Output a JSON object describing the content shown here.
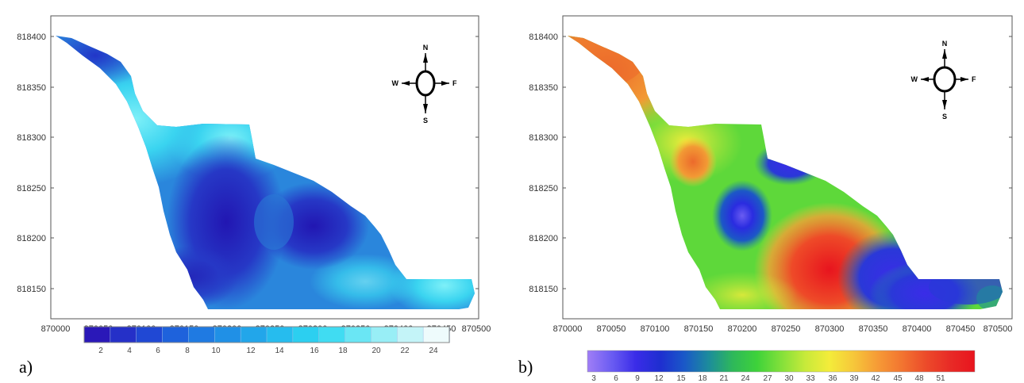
{
  "panels": [
    {
      "label": "a)",
      "x_ticks": [
        "870000",
        "870050",
        "870100",
        "870150",
        "870200",
        "870250",
        "870300",
        "870350",
        "870400",
        "870450",
        "870500"
      ],
      "y_ticks": [
        "818400",
        "818350",
        "818300",
        "818250",
        "818200",
        "818150"
      ],
      "compass": {
        "n": "N",
        "s": "S",
        "e": "F",
        "w": "W"
      },
      "colorbar_ticks": [
        "2",
        "4",
        "6",
        "8",
        "10",
        "12",
        "14",
        "16",
        "18",
        "20",
        "22",
        "24"
      ],
      "colorbar_colors": [
        "#2a18b8",
        "#2530c8",
        "#2048d4",
        "#1e62dc",
        "#1f7ae2",
        "#2090e6",
        "#22a6ea",
        "#26bcee",
        "#2ccff0",
        "#40dcf2",
        "#6ae6f4",
        "#98eef6",
        "#c4f4f8",
        "#eefbfc"
      ],
      "map_colors": {
        "dark": "#2418b4",
        "mid": "#1f5fd8",
        "light": "#3fd6f2"
      }
    },
    {
      "label": "b)",
      "x_ticks": [
        "870000",
        "870050",
        "870100",
        "870150",
        "870200",
        "870250",
        "870300",
        "870350",
        "870400",
        "870450",
        "870500"
      ],
      "y_ticks": [
        "818400",
        "818350",
        "818300",
        "818250",
        "818200",
        "818150"
      ],
      "compass": {
        "n": "N",
        "s": "S",
        "e": "F",
        "w": "W"
      },
      "colorbar_ticks": [
        "3",
        "6",
        "9",
        "12",
        "15",
        "18",
        "21",
        "24",
        "27",
        "30",
        "33",
        "36",
        "39",
        "42",
        "45",
        "48",
        "51"
      ],
      "colorbar_gradient": [
        "#a07ef6",
        "#6a5cf2",
        "#3a2ce8",
        "#1e2ed0",
        "#1a58c8",
        "#1c8c9c",
        "#2eb85a",
        "#3ed23a",
        "#82e03a",
        "#c8ea3a",
        "#f4ec3a",
        "#f6c63a",
        "#f69a36",
        "#f27430",
        "#ec4a2a",
        "#e82a26",
        "#e8141e"
      ]
    }
  ]
}
